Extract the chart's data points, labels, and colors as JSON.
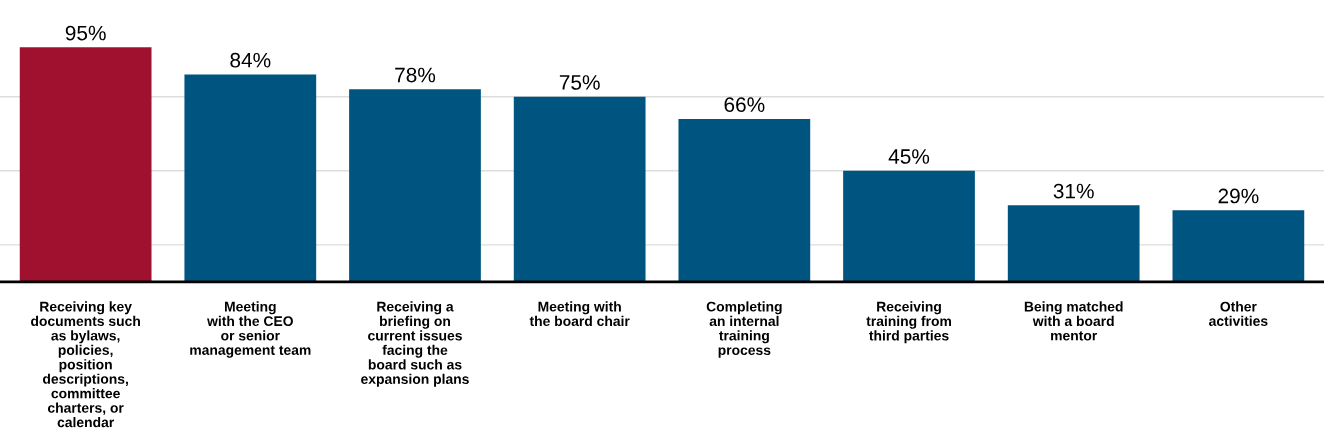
{
  "chart_data": {
    "type": "bar",
    "categories": [
      "Receiving key\ndocuments such\nas bylaws,\npolicies,\nposition\ndescriptions,\ncommittee\ncharters, or\ncalendar",
      "Meeting\nwith the CEO\nor senior\nmanagement team",
      "Receiving a\nbriefing on\ncurrent issues\nfacing the\nboard such as\nexpansion plans",
      "Meeting with\nthe board chair",
      "Completing\nan internal\ntraining\nprocess",
      "Receiving\ntraining from\nthird parties",
      "Being matched\nwith a board\nmentor",
      "Other\nactivities"
    ],
    "values": [
      95,
      84,
      78,
      75,
      66,
      45,
      31,
      29
    ],
    "value_labels": [
      "95%",
      "84%",
      "78%",
      "75%",
      "66%",
      "45%",
      "31%",
      "29%"
    ],
    "colors": [
      "#a0102f",
      "#005580",
      "#005580",
      "#005580",
      "#005580",
      "#005580",
      "#005580",
      "#005580"
    ],
    "yticks": [
      {
        "value": 15,
        "label": null
      },
      {
        "value": 45,
        "label": null
      },
      {
        "value": 75,
        "label": null
      }
    ],
    "tick_labels": "x",
    "grid": "y"
  }
}
